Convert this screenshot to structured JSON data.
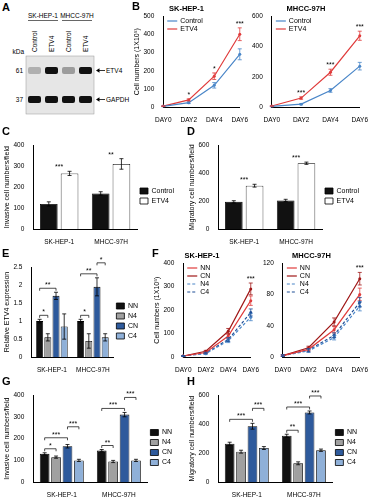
{
  "blot": {
    "panel": "A",
    "groups": [
      "SK-HEP-1",
      "MHCC-97H"
    ],
    "lanes": [
      "Control",
      "ETV4",
      "Control",
      "ETV4"
    ],
    "unit": "kDa",
    "rows": [
      {
        "marker": 61,
        "label": "ETV4",
        "intensity": [
          0.25,
          1,
          0.35,
          1
        ]
      },
      {
        "marker": 37,
        "label": "GAPDH",
        "intensity": [
          1,
          1,
          1,
          1
        ]
      }
    ]
  },
  "chart_data": [
    {
      "panel": "B",
      "type": "line",
      "title": "SK-HEP-1",
      "ylabel": "Cell numbers (1X10⁵)",
      "categories": [
        "DAY0",
        "DAY2",
        "DAY4",
        "DAY6"
      ],
      "series": [
        {
          "name": "Control",
          "color": "#4a86c8",
          "line_style": "solid",
          "values": [
            5,
            25,
            120,
            290
          ],
          "errors": [
            2,
            5,
            15,
            30
          ]
        },
        {
          "name": "ETV4",
          "color": "#e03c3c",
          "line_style": "solid",
          "values": [
            6,
            40,
            170,
            400
          ],
          "errors": [
            2,
            6,
            18,
            35
          ]
        }
      ],
      "significance": [
        null,
        "*",
        "*",
        "***"
      ],
      "ylim": [
        0,
        500
      ],
      "yticks": [
        0,
        100,
        200,
        300,
        400,
        500
      ],
      "grid": false,
      "legend": "upper left"
    },
    {
      "type": "line",
      "title": "MHCC-97H",
      "categories": [
        "DAY0",
        "DAY2",
        "DAY4",
        "DAY6"
      ],
      "series": [
        {
          "name": "Control",
          "color": "#4a86c8",
          "line_style": "solid",
          "values": [
            5,
            20,
            110,
            270
          ],
          "errors": [
            2,
            4,
            12,
            25
          ]
        },
        {
          "name": "ETV4",
          "color": "#e03c3c",
          "line_style": "solid",
          "values": [
            8,
            60,
            230,
            470
          ],
          "errors": [
            2,
            8,
            20,
            30
          ]
        }
      ],
      "significance": [
        null,
        "***",
        "***",
        "***"
      ],
      "ylim": [
        0,
        600
      ],
      "yticks": [
        0,
        200,
        400,
        600
      ],
      "grid": false,
      "legend": "upper left"
    },
    {
      "panel": "C",
      "type": "bar",
      "ylabel": "Invasive cell numbers/field",
      "categories": [
        "SK-HEP-1",
        "MHCC-97H"
      ],
      "series": [
        {
          "name": "Control",
          "color": "#111111",
          "values": [
            120,
            170
          ],
          "errors": [
            10,
            8
          ]
        },
        {
          "name": "ETV4",
          "color": "#ffffff",
          "values": [
            265,
            310
          ],
          "errors": [
            10,
            25
          ]
        }
      ],
      "significance": [
        "***",
        "**"
      ],
      "ylim": [
        0,
        400
      ],
      "yticks": [
        0,
        100,
        200,
        300,
        400
      ],
      "grid": false,
      "legend": "right"
    },
    {
      "panel": "D",
      "type": "bar",
      "ylabel": "Migratory cell numbers/field",
      "categories": [
        "SK-HEP-1",
        "MHCC-97H"
      ],
      "series": [
        {
          "name": "Control",
          "color": "#111111",
          "values": [
            195,
            205
          ],
          "errors": [
            8,
            8
          ]
        },
        {
          "name": "ETV4",
          "color": "#ffffff",
          "values": [
            310,
            470
          ],
          "errors": [
            10,
            8
          ]
        }
      ],
      "significance": [
        "***",
        "***"
      ],
      "ylim": [
        0,
        600
      ],
      "yticks": [
        0,
        200,
        400,
        600
      ],
      "grid": false,
      "legend": "right"
    },
    {
      "panel": "E",
      "type": "bar",
      "ylabel": "Relative ETV4 expression",
      "categories": [
        "SK-HEP-1",
        "MHCC-97H"
      ],
      "series": [
        {
          "name": "NN",
          "color": "#111111",
          "values": [
            1,
            1
          ],
          "errors": [
            0.05,
            0.05
          ]
        },
        {
          "name": "N4",
          "color": "#a0a0a0",
          "values": [
            0.55,
            0.45
          ],
          "errors": [
            0.1,
            0.2
          ]
        },
        {
          "name": "CN",
          "color": "#2e5a9c",
          "values": [
            1.7,
            1.95
          ],
          "errors": [
            0.1,
            0.25
          ]
        },
        {
          "name": "C4",
          "color": "#8fb0d8",
          "values": [
            0.85,
            0.55
          ],
          "errors": [
            0.35,
            0.1
          ]
        }
      ],
      "comparisons": [
        {
          "category": "SK-HEP-1",
          "from": "NN",
          "to": "N4",
          "label": "*"
        },
        {
          "category": "SK-HEP-1",
          "from": "NN",
          "to": "CN",
          "label": "**"
        },
        {
          "category": "MHCC-97H",
          "from": "NN",
          "to": "N4",
          "label": "*"
        },
        {
          "category": "MHCC-97H",
          "from": "NN",
          "to": "CN",
          "label": "**"
        },
        {
          "category": "MHCC-97H",
          "from": "CN",
          "to": "C4",
          "label": "*"
        }
      ],
      "ylim": [
        0,
        2.5
      ],
      "yticks": [
        0,
        0.5,
        1,
        1.5,
        2,
        2.5
      ],
      "grid": false,
      "legend": "right"
    },
    {
      "panel": "F",
      "type": "line",
      "title": "SK-HEP-1",
      "ylabel": "Cell numbers (1X10⁵)",
      "categories": [
        "DAY0",
        "DAY2",
        "DAY4",
        "DAY6"
      ],
      "series": [
        {
          "name": "NN",
          "color": "#e03c3c",
          "line_style": "solid",
          "values": [
            5,
            20,
            90,
            240
          ],
          "errors": [
            2,
            4,
            10,
            20
          ]
        },
        {
          "name": "CN",
          "color": "#a01818",
          "line_style": "solid",
          "values": [
            5,
            25,
            110,
            290
          ],
          "errors": [
            2,
            4,
            12,
            25
          ]
        },
        {
          "name": "N4",
          "color": "#4a86c8",
          "line_style": "dashed",
          "values": [
            5,
            15,
            70,
            170
          ],
          "errors": [
            2,
            3,
            8,
            15
          ]
        },
        {
          "name": "C4",
          "color": "#1f4e96",
          "line_style": "dashed",
          "values": [
            5,
            18,
            75,
            190
          ],
          "errors": [
            2,
            3,
            8,
            15
          ]
        }
      ],
      "significance": [
        null,
        null,
        null,
        "***"
      ],
      "ylim": [
        0,
        400
      ],
      "yticks": [
        0,
        100,
        200,
        300,
        400
      ],
      "grid": false,
      "legend": "upper left"
    },
    {
      "type": "line",
      "title": "MHCC-97H",
      "categories": [
        "DAY0",
        "DAY2",
        "DAY4",
        "DAY6"
      ],
      "series": [
        {
          "name": "NN",
          "color": "#e03c3c",
          "line_style": "solid",
          "values": [
            2,
            10,
            35,
            80
          ],
          "errors": [
            1,
            2,
            4,
            8
          ]
        },
        {
          "name": "CN",
          "color": "#a01818",
          "line_style": "solid",
          "values": [
            2,
            12,
            45,
            100
          ],
          "errors": [
            1,
            2,
            5,
            8
          ]
        },
        {
          "name": "N4",
          "color": "#4a86c8",
          "line_style": "dashed",
          "values": [
            2,
            8,
            25,
            65
          ],
          "errors": [
            1,
            2,
            3,
            6
          ]
        },
        {
          "name": "C4",
          "color": "#1f4e96",
          "line_style": "dashed",
          "values": [
            2,
            9,
            28,
            70
          ],
          "errors": [
            1,
            2,
            3,
            6
          ]
        }
      ],
      "significance": [
        null,
        null,
        null,
        "***"
      ],
      "ylim": [
        0,
        120
      ],
      "yticks": [
        0,
        40,
        80,
        120
      ],
      "grid": false,
      "legend": "upper left"
    },
    {
      "panel": "G",
      "type": "bar",
      "ylabel": "Invasive cell numbers/field",
      "categories": [
        "SK-HEP-1",
        "MHCC-97H"
      ],
      "series": [
        {
          "name": "NN",
          "color": "#111111",
          "values": [
            130,
            145
          ],
          "errors": [
            5,
            5
          ]
        },
        {
          "name": "N4",
          "color": "#a0a0a0",
          "values": [
            115,
            95
          ],
          "errors": [
            5,
            5
          ]
        },
        {
          "name": "CN",
          "color": "#2e5a9c",
          "values": [
            165,
            310
          ],
          "errors": [
            8,
            10
          ]
        },
        {
          "name": "C4",
          "color": "#8fb0d8",
          "values": [
            100,
            100
          ],
          "errors": [
            5,
            5
          ]
        }
      ],
      "comparisons": [
        {
          "category": "SK-HEP-1",
          "from": "NN",
          "to": "N4",
          "label": "*"
        },
        {
          "category": "SK-HEP-1",
          "from": "NN",
          "to": "CN",
          "label": "***"
        },
        {
          "category": "SK-HEP-1",
          "from": "CN",
          "to": "C4",
          "label": "***"
        },
        {
          "category": "MHCC-97H",
          "from": "NN",
          "to": "N4",
          "label": "**"
        },
        {
          "category": "MHCC-97H",
          "from": "NN",
          "to": "CN",
          "label": "***"
        },
        {
          "category": "MHCC-97H",
          "from": "CN",
          "to": "C4",
          "label": "***"
        }
      ],
      "ylim": [
        0,
        400
      ],
      "yticks": [
        0,
        100,
        200,
        300,
        400
      ],
      "grid": false,
      "legend": "right"
    },
    {
      "panel": "H",
      "type": "bar",
      "ylabel": "Migratory cell numbers/field",
      "categories": [
        "SK-HEP-1",
        "MHCC-97H"
      ],
      "series": [
        {
          "name": "NN",
          "color": "#111111",
          "values": [
            265,
            320
          ],
          "errors": [
            10,
            10
          ]
        },
        {
          "name": "N4",
          "color": "#a0a0a0",
          "values": [
            210,
            130
          ],
          "errors": [
            10,
            10
          ]
        },
        {
          "name": "CN",
          "color": "#2e5a9c",
          "values": [
            385,
            480
          ],
          "errors": [
            20,
            10
          ]
        },
        {
          "name": "C4",
          "color": "#8fb0d8",
          "values": [
            235,
            220
          ],
          "errors": [
            10,
            8
          ]
        }
      ],
      "comparisons": [
        {
          "category": "SK-HEP-1",
          "from": "NN",
          "to": "CN",
          "label": "***"
        },
        {
          "category": "SK-HEP-1",
          "from": "CN",
          "to": "C4",
          "label": "***"
        },
        {
          "category": "MHCC-97H",
          "from": "NN",
          "to": "N4",
          "label": "**"
        },
        {
          "category": "MHCC-97H",
          "from": "NN",
          "to": "CN",
          "label": "***"
        },
        {
          "category": "MHCC-97H",
          "from": "CN",
          "to": "C4",
          "label": "***"
        }
      ],
      "ylim": [
        0,
        600
      ],
      "yticks": [
        0,
        200,
        400,
        600
      ],
      "grid": false,
      "legend": "right"
    }
  ]
}
